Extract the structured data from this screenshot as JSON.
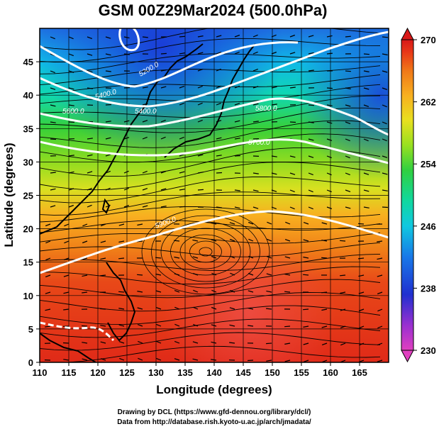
{
  "title": "GSM 00Z29Mar2024 (500.0hPa)",
  "x_axis": {
    "label": "Longitude (degrees)",
    "range": [
      110,
      170
    ],
    "ticks": [
      "110",
      "115",
      "120",
      "125",
      "130",
      "135",
      "140",
      "145",
      "150",
      "155",
      "160",
      "165"
    ]
  },
  "y_axis": {
    "label": "Latitude  (degrees)",
    "range": [
      0,
      50
    ],
    "ticks": [
      "0",
      "5",
      "10",
      "15",
      "20",
      "25",
      "30",
      "35",
      "40",
      "45"
    ]
  },
  "colorbar": {
    "range": [
      230,
      270
    ],
    "ticks": [
      "230",
      "238",
      "246",
      "254",
      "262",
      "270"
    ],
    "colors": [
      "#e040c0",
      "#9a30d0",
      "#2030d0",
      "#1878e8",
      "#10c8e0",
      "#10d8a0",
      "#30d040",
      "#98e020",
      "#e8e020",
      "#f8b020",
      "#f07818",
      "#e83818",
      "#d81818"
    ]
  },
  "contour_labels": [
    "5200.0",
    "5400.0",
    "5600.0",
    "5800.0",
    "5700.0",
    "5900.0"
  ],
  "credits": {
    "line1": "Drawing by DCL (https://www.gfd-dennou.org/library/dcl/)",
    "line2": "Data from http://database.rish.kyoto-u.ac.jp/arch/jmadata/"
  },
  "colors": {
    "contour": "#ffffff",
    "coast": "#000000",
    "grid": "#000000"
  }
}
